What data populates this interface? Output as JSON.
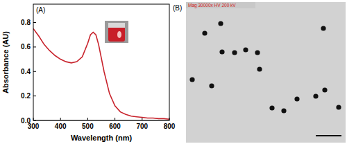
{
  "chart_data": {
    "type": "line",
    "title": "(A)",
    "x_label": "Wavelength (nm)",
    "y_label": "Absorbance (AU)",
    "x": [
      300,
      320,
      340,
      360,
      380,
      400,
      420,
      440,
      460,
      480,
      500,
      510,
      520,
      530,
      540,
      560,
      580,
      600,
      620,
      640,
      660,
      680,
      700,
      720,
      740,
      760,
      780,
      800
    ],
    "series": [
      {
        "color": "#c8232c",
        "values": [
          0.75,
          0.69,
          0.62,
          0.57,
          0.53,
          0.5,
          0.48,
          0.47,
          0.48,
          0.52,
          0.63,
          0.7,
          0.72,
          0.7,
          0.62,
          0.4,
          0.22,
          0.12,
          0.07,
          0.05,
          0.035,
          0.03,
          0.025,
          0.02,
          0.02,
          0.015,
          0.015,
          0.01
        ]
      },
      {
        "color": "#000000",
        "values": [
          0,
          0,
          0,
          0,
          0,
          0,
          0,
          0,
          0,
          0,
          0,
          0,
          0,
          0,
          0,
          0,
          0,
          0,
          0,
          0,
          0,
          0,
          0,
          0,
          0,
          0,
          0,
          0
        ]
      }
    ],
    "xlim": [
      300,
      800
    ],
    "xticks": [
      300,
      400,
      500,
      600,
      700,
      800
    ],
    "ylim": [
      0,
      0.95
    ],
    "yticks": [
      {
        "value": 0,
        "label": "0.0"
      },
      {
        "value": 0.2,
        "label": "0.2"
      },
      {
        "value": 0.4,
        "label": "0.4"
      },
      {
        "value": 0.6,
        "label": "0.6"
      },
      {
        "value": 0.8,
        "label": "0.8"
      }
    ],
    "grid": false
  },
  "panel_b": {
    "label": "(B)",
    "caption": "Mag 30000x HV 200 kV"
  }
}
